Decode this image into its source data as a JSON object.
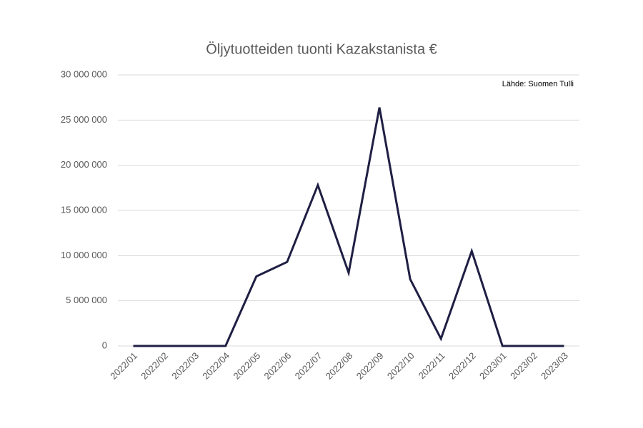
{
  "chart_data": {
    "type": "line",
    "title": "Öljytuotteiden tuonti Kazakstanista €",
    "annotation": "Lähde: Suomen Tulli",
    "categories": [
      "2022/01",
      "2022/02",
      "2022/03",
      "2022/04",
      "2022/05",
      "2022/06",
      "2022/07",
      "2022/08",
      "2022/09",
      "2022/10",
      "2022/11",
      "2022/12",
      "2023/01",
      "2023/02",
      "2023/03"
    ],
    "values": [
      0,
      0,
      0,
      0,
      7700000,
      9300000,
      17800000,
      8100000,
      26400000,
      7400000,
      800000,
      10500000,
      0,
      0,
      0
    ],
    "color": "#1f1f44",
    "ylim": [
      0,
      30000000
    ],
    "yticks": [
      0,
      {
        "value": 5000000,
        "label": "5 000 000"
      },
      {
        "value": 10000000,
        "label": "10 000 000"
      },
      {
        "value": 15000000,
        "label": "15 000 000"
      },
      {
        "value": 20000000,
        "label": "20 000 000"
      },
      {
        "value": 25000000,
        "label": "25 000 000"
      },
      {
        "value": 30000000,
        "label": "30 000 000"
      }
    ],
    "grid": true
  }
}
